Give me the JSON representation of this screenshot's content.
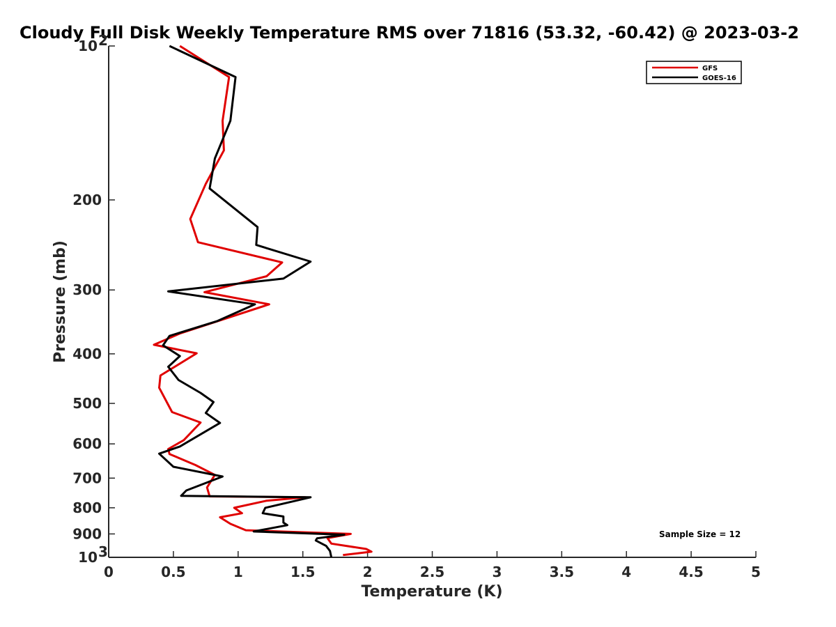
{
  "chart_data": {
    "type": "line",
    "title": "Cloudy Full Disk Weekly Temperature RMS over 71816 (53.32, -60.42) @ 2023-03-2",
    "xlabel": "Temperature (K)",
    "ylabel": "Pressure (mb)",
    "xlim": [
      0,
      5
    ],
    "ylim": [
      1000,
      100
    ],
    "y_scale": "log",
    "y_reversed": true,
    "grid": false,
    "legend_position": "top-right",
    "x_ticks": [
      {
        "value": 0,
        "label": "0"
      },
      {
        "value": 0.5,
        "label": "0.5"
      },
      {
        "value": 1,
        "label": "1"
      },
      {
        "value": 1.5,
        "label": "1.5"
      },
      {
        "value": 2,
        "label": "2"
      },
      {
        "value": 2.5,
        "label": "2.5"
      },
      {
        "value": 3,
        "label": "3"
      },
      {
        "value": 3.5,
        "label": "3.5"
      },
      {
        "value": 4,
        "label": "4"
      },
      {
        "value": 4.5,
        "label": "4.5"
      },
      {
        "value": 5,
        "label": "5"
      }
    ],
    "y_ticks": [
      {
        "value": 100,
        "label": "10",
        "sup": "2"
      },
      {
        "value": 200,
        "label": "200",
        "sup": ""
      },
      {
        "value": 300,
        "label": "300",
        "sup": ""
      },
      {
        "value": 400,
        "label": "400",
        "sup": ""
      },
      {
        "value": 500,
        "label": "500",
        "sup": ""
      },
      {
        "value": 600,
        "label": "600",
        "sup": ""
      },
      {
        "value": 700,
        "label": "700",
        "sup": ""
      },
      {
        "value": 800,
        "label": "800",
        "sup": ""
      },
      {
        "value": 900,
        "label": "900",
        "sup": ""
      },
      {
        "value": 1000,
        "label": "10",
        "sup": "3"
      }
    ],
    "series": [
      {
        "name": "GFS",
        "color": "#e00000",
        "points": [
          [
            0.55,
            100
          ],
          [
            0.93,
            115
          ],
          [
            0.88,
            140
          ],
          [
            0.89,
            160
          ],
          [
            0.75,
            186
          ],
          [
            0.63,
            218
          ],
          [
            0.69,
            242
          ],
          [
            1.34,
            265
          ],
          [
            1.22,
            282
          ],
          [
            0.74,
            303
          ],
          [
            1.24,
            320
          ],
          [
            0.55,
            365
          ],
          [
            0.35,
            384
          ],
          [
            0.68,
            399
          ],
          [
            0.4,
            441
          ],
          [
            0.39,
            466
          ],
          [
            0.49,
            520
          ],
          [
            0.71,
            545
          ],
          [
            0.58,
            590
          ],
          [
            0.46,
            614
          ],
          [
            0.47,
            628
          ],
          [
            0.67,
            660
          ],
          [
            0.82,
            690
          ],
          [
            0.76,
            730
          ],
          [
            0.78,
            760
          ],
          [
            1.52,
            763
          ],
          [
            1.22,
            775
          ],
          [
            0.97,
            800
          ],
          [
            1.03,
            820
          ],
          [
            0.86,
            835
          ],
          [
            0.94,
            860
          ],
          [
            1.06,
            885
          ],
          [
            1.87,
            900
          ],
          [
            1.69,
            917
          ],
          [
            1.72,
            940
          ],
          [
            1.99,
            963
          ],
          [
            2.03,
            975
          ],
          [
            1.81,
            990
          ]
        ]
      },
      {
        "name": "GOES-16",
        "color": "#000000",
        "points": [
          [
            0.47,
            100
          ],
          [
            0.98,
            115
          ],
          [
            0.94,
            140
          ],
          [
            0.82,
            166
          ],
          [
            0.78,
            190
          ],
          [
            1.15,
            226
          ],
          [
            1.14,
            245
          ],
          [
            1.56,
            264
          ],
          [
            1.35,
            285
          ],
          [
            0.46,
            302
          ],
          [
            1.13,
            320
          ],
          [
            0.84,
            345
          ],
          [
            0.47,
            369
          ],
          [
            0.42,
            385
          ],
          [
            0.55,
            404
          ],
          [
            0.46,
            424
          ],
          [
            0.54,
            450
          ],
          [
            0.71,
            477
          ],
          [
            0.81,
            497
          ],
          [
            0.75,
            522
          ],
          [
            0.86,
            546
          ],
          [
            0.55,
            607
          ],
          [
            0.39,
            627
          ],
          [
            0.5,
            665
          ],
          [
            0.88,
            695
          ],
          [
            0.6,
            740
          ],
          [
            0.56,
            758
          ],
          [
            1.56,
            763
          ],
          [
            1.21,
            800
          ],
          [
            1.19,
            820
          ],
          [
            1.35,
            832
          ],
          [
            1.35,
            855
          ],
          [
            1.38,
            865
          ],
          [
            1.12,
            890
          ],
          [
            1.82,
            903
          ],
          [
            1.61,
            918
          ],
          [
            1.6,
            927
          ],
          [
            1.68,
            950
          ],
          [
            1.71,
            972
          ],
          [
            1.72,
            1000
          ]
        ]
      }
    ],
    "legend": [
      {
        "label": "GFS",
        "color": "#e00000"
      },
      {
        "label": "GOES-16",
        "color": "#000000"
      }
    ],
    "annotation": "Sample Size = 12"
  }
}
